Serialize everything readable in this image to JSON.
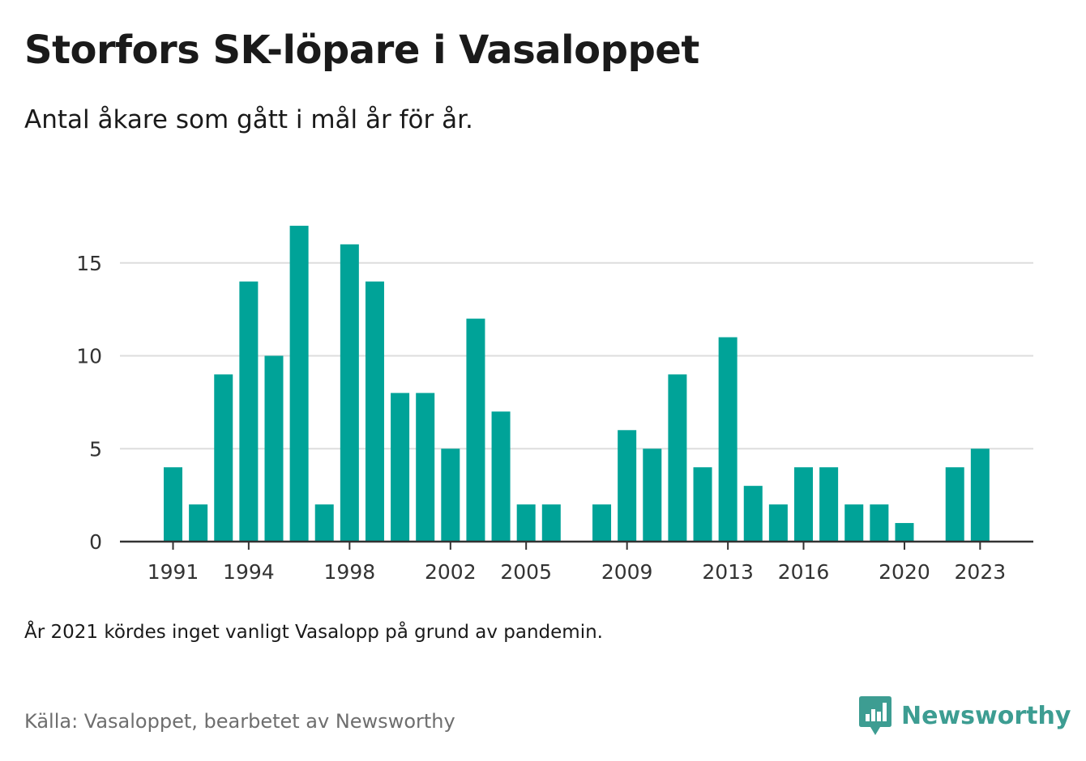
{
  "title": "Storfors SK-löpare i Vasaloppet",
  "subtitle": "Antal åkare som gått i mål år för år.",
  "note": "År 2021 kördes inget vanligt Vasalopp på grund av pandemin.",
  "source": "Källa: Vasaloppet, bearbetet av Newsworthy",
  "brand": {
    "name": "Newsworthy",
    "icon": "newsworthy-logo-icon",
    "color": "#3d9d92"
  },
  "chart_data": {
    "type": "bar",
    "title": "Storfors SK-löpare i Vasaloppet",
    "subtitle": "Antal åkare som gått i mål år för år.",
    "xlabel": "",
    "ylabel": "",
    "bar_color": "#00a398",
    "grid": true,
    "ylim": [
      0,
      18.5
    ],
    "yticks": [
      0,
      5,
      10,
      15
    ],
    "xticks": [
      1991,
      1994,
      1998,
      2002,
      2005,
      2009,
      2013,
      2016,
      2020,
      2023
    ],
    "categories": [
      1991,
      1992,
      1993,
      1994,
      1995,
      1996,
      1997,
      1998,
      1999,
      2000,
      2001,
      2002,
      2003,
      2004,
      2005,
      2006,
      2007,
      2008,
      2009,
      2010,
      2011,
      2012,
      2013,
      2014,
      2015,
      2016,
      2017,
      2018,
      2019,
      2020,
      2021,
      2022,
      2023
    ],
    "values": [
      4,
      2,
      9,
      14,
      10,
      17,
      2,
      16,
      14,
      8,
      8,
      5,
      12,
      7,
      2,
      2,
      0,
      2,
      6,
      5,
      9,
      4,
      11,
      3,
      2,
      4,
      4,
      2,
      2,
      1,
      0,
      4,
      5
    ]
  }
}
